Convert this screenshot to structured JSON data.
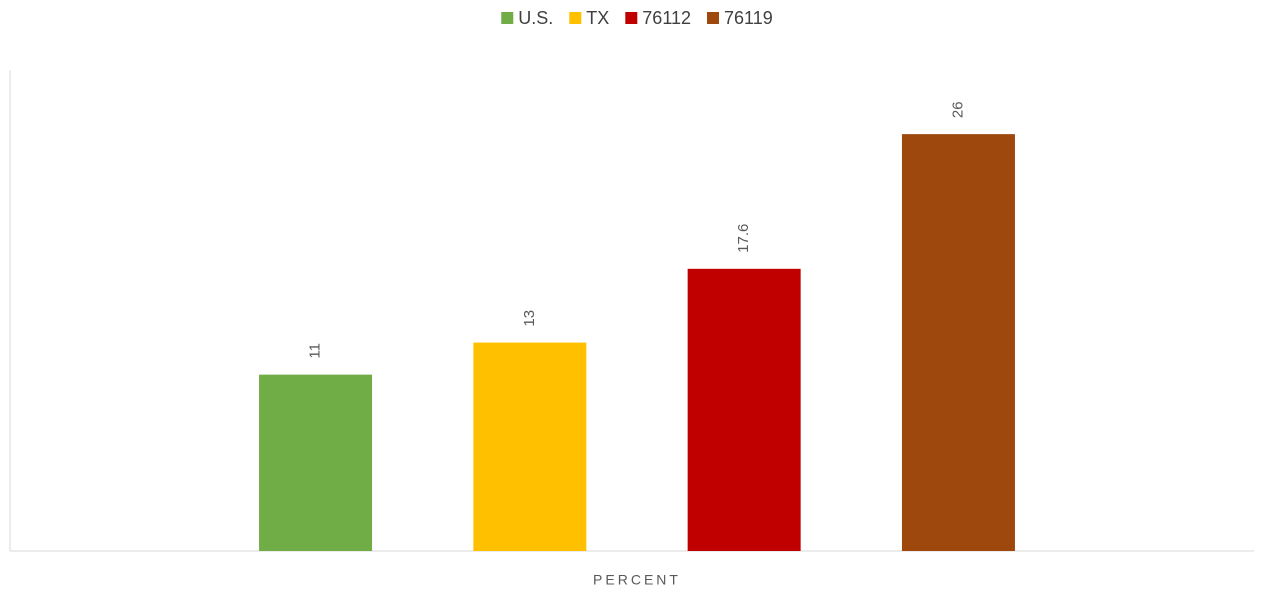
{
  "chart_data": {
    "type": "bar",
    "categories": [
      "PERCENT"
    ],
    "series": [
      {
        "name": "U.S.",
        "color": "#70ad47",
        "values": [
          11
        ]
      },
      {
        "name": "TX",
        "color": "#ffc000",
        "values": [
          13
        ]
      },
      {
        "name": "76112",
        "color": "#c00000",
        "values": [
          17.6
        ]
      },
      {
        "name": "76119",
        "color": "#9e480e",
        "values": [
          26
        ]
      }
    ],
    "ylim": [
      0,
      30
    ],
    "legend": "top",
    "data_labels": true
  }
}
